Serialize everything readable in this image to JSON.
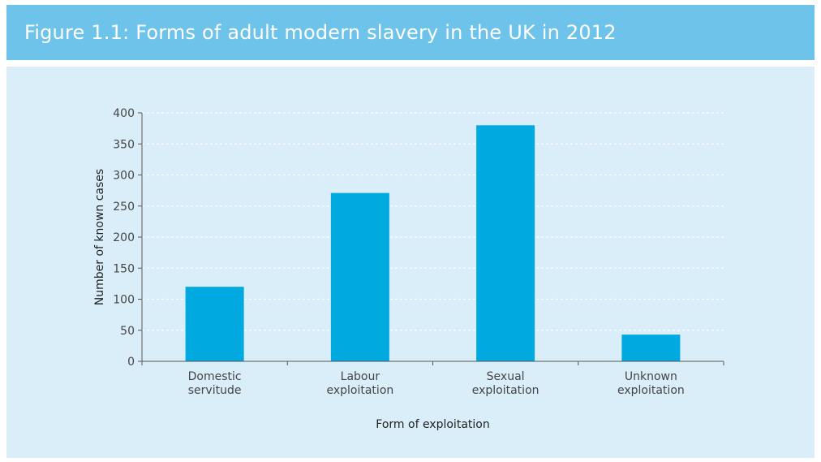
{
  "header": {
    "title": "Figure 1.1: Forms of adult modern slavery in the UK in 2012"
  },
  "colors": {
    "title_bar": "#6ec3ea",
    "panel": "#daeef9",
    "bar": "#00a9e0",
    "axis": "#555555",
    "grid": "#ffffff"
  },
  "chart_data": {
    "type": "bar",
    "categories": [
      [
        "Domestic",
        "servitude"
      ],
      [
        "Labour",
        "exploitation"
      ],
      [
        "Sexual",
        "exploitation"
      ],
      [
        "Unknown",
        "exploitation"
      ]
    ],
    "values": [
      120,
      271,
      380,
      43
    ],
    "xlabel": "Form of exploitation",
    "ylabel": "Number of known cases",
    "ylim": [
      0,
      400
    ],
    "yticks": [
      0,
      50,
      100,
      150,
      200,
      250,
      300,
      350,
      400
    ],
    "grid": true
  }
}
